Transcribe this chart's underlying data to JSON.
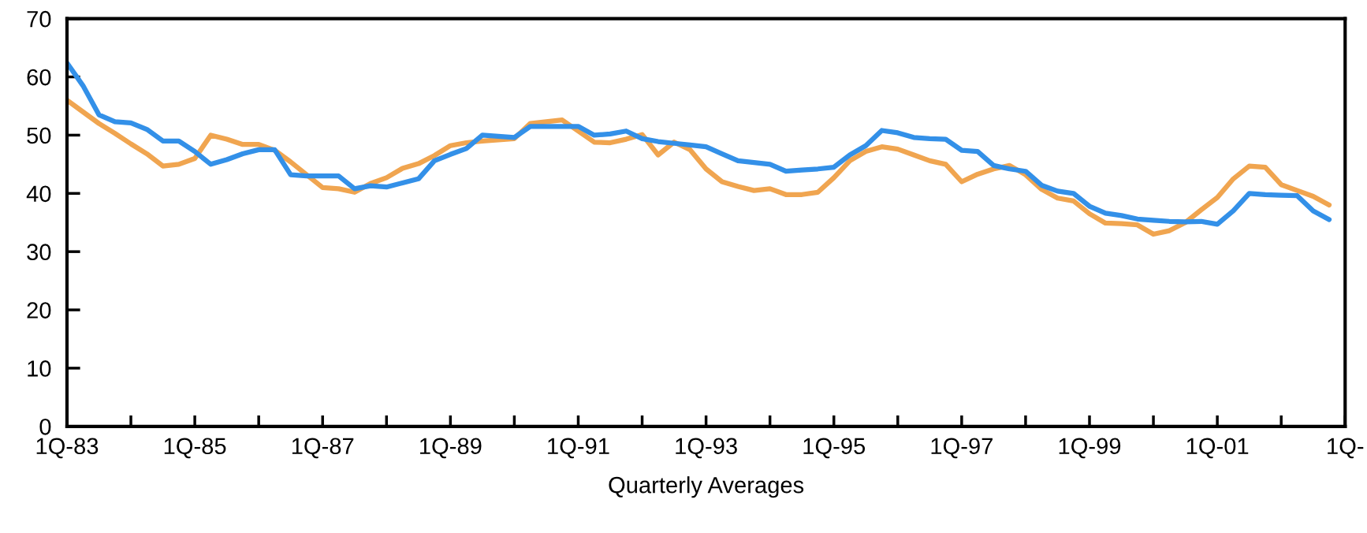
{
  "chart_data": {
    "type": "line",
    "xlabel": "Quarterly Averages",
    "categories": [
      "1Q-83",
      null,
      null,
      null,
      null,
      null,
      null,
      null,
      "1Q-85",
      null,
      null,
      null,
      null,
      null,
      null,
      null,
      "1Q-87",
      null,
      null,
      null,
      null,
      null,
      null,
      null,
      "1Q-89",
      null,
      null,
      null,
      null,
      null,
      null,
      null,
      "1Q-91",
      null,
      null,
      null,
      null,
      null,
      null,
      null,
      "1Q-93",
      null,
      null,
      null,
      null,
      null,
      null,
      null,
      "1Q-95",
      null,
      null,
      null,
      null,
      null,
      null,
      null,
      "1Q-97",
      null,
      null,
      null,
      null,
      null,
      null,
      null,
      "1Q-99",
      null,
      null,
      null,
      null,
      null,
      null,
      null,
      "1Q-01",
      null,
      null,
      null,
      null,
      null,
      null,
      null,
      "1Q-"
    ],
    "ylim": [
      0,
      70
    ],
    "yticks": [
      0,
      10,
      20,
      30,
      40,
      50,
      60,
      70
    ],
    "grid": false,
    "marker": "none",
    "line_style": "solid",
    "series": [
      {
        "color": "#f0a550",
        "values": [
          56,
          54,
          52,
          50.3,
          48.5,
          46.8,
          44.7,
          45,
          46,
          50,
          49.3,
          48.4,
          48.4,
          47.4,
          45.4,
          43.2,
          41,
          40.8,
          40.2,
          41.7,
          42.7,
          44.3,
          45.1,
          46.5,
          48.2,
          48.7,
          49,
          49.2,
          49.4,
          52,
          52.3,
          52.6,
          50.7,
          48.8,
          48.7,
          49.3,
          50.1,
          46.6,
          48.8,
          47.5,
          44.2,
          42,
          41.2,
          40.5,
          40.8,
          39.8,
          39.8,
          40.2,
          42.7,
          45.6,
          47.2,
          48,
          47.6,
          46.6,
          45.6,
          45,
          42,
          43.3,
          44.2,
          44.8,
          43.2,
          40.7,
          39.2,
          38.7,
          36.5,
          34.9,
          34.8,
          34.6,
          33,
          33.6,
          35,
          37.2,
          39.3,
          42.5,
          44.7,
          44.5,
          41.5,
          40.5,
          39.5,
          38,
          null
        ]
      },
      {
        "color": "#3390e8",
        "values": [
          62.4,
          58.5,
          53.5,
          52.3,
          52.1,
          51,
          49,
          49,
          47.2,
          45,
          45.8,
          46.8,
          47.5,
          47.5,
          43.2,
          43,
          43,
          43,
          40.8,
          41.3,
          41.1,
          41.8,
          42.5,
          45.6,
          46.7,
          47.7,
          50,
          49.8,
          49.6,
          51.5,
          51.5,
          51.5,
          51.5,
          50,
          50.2,
          50.7,
          49.4,
          48.9,
          48.6,
          48.3,
          48,
          46.8,
          45.6,
          45.3,
          45,
          43.8,
          44,
          44.2,
          44.5,
          46.6,
          48.2,
          50.8,
          50.4,
          49.6,
          49.4,
          49.3,
          47.4,
          47.2,
          44.8,
          44.2,
          43.8,
          41.4,
          40.4,
          40,
          37.8,
          36.6,
          36.2,
          35.6,
          35.4,
          35.2,
          35.1,
          35.2,
          34.7,
          37,
          40,
          39.8,
          39.7,
          39.6,
          37,
          35.5,
          null
        ]
      }
    ]
  }
}
